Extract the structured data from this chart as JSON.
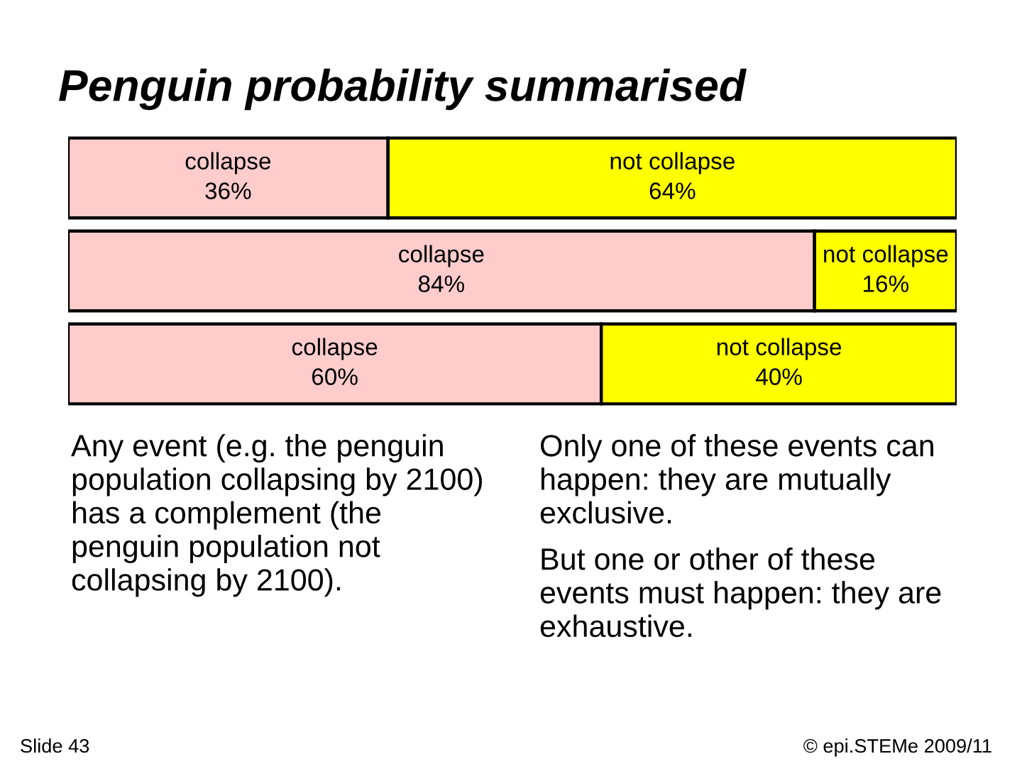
{
  "chart_data": {
    "type": "bar",
    "orientation": "horizontal",
    "stacked": true,
    "title": "Penguin probability summarised",
    "categories": [
      null,
      null,
      null
    ],
    "series": [
      {
        "name": "collapse",
        "color": "#ffcccc",
        "values": [
          36,
          84,
          60
        ],
        "value_labels": [
          "36%",
          "84%",
          "60%"
        ]
      },
      {
        "name": "not collapse",
        "color": "#ffff00",
        "values": [
          64,
          16,
          40
        ],
        "value_labels": [
          "64%",
          "16%",
          "40%"
        ]
      }
    ],
    "tick_labels": false,
    "legend": false,
    "annotations": [
      "Any event (e.g. the penguin\npopulation collapsing by 2100)\nhas a complement (the\npenguin population not\ncollapsing by 2100).",
      "Only one of these events can\nhappen: they are mutually\nexclusive.",
      "But one or other of these\nevents must happen: they are\nexhaustive.",
      "Slide 43",
      "© epi.STEMe 2009/11"
    ]
  }
}
